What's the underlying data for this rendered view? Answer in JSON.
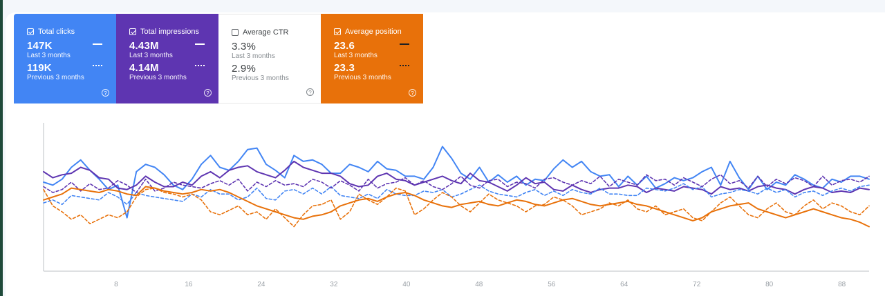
{
  "cards": [
    {
      "id": "clicks",
      "title": "Total clicks",
      "checked": true,
      "current": "147K",
      "current_label": "Last 3 months",
      "previous": "119K",
      "previous_label": "Previous 3 months",
      "color": "#4285f4"
    },
    {
      "id": "impressions",
      "title": "Total impressions",
      "checked": true,
      "current": "4.43M",
      "current_label": "Last 3 months",
      "previous": "4.14M",
      "previous_label": "Previous 3 months",
      "color": "#5e35b1"
    },
    {
      "id": "ctr",
      "title": "Average CTR",
      "checked": false,
      "current": "3.3%",
      "current_label": "Last 3 months",
      "previous": "2.9%",
      "previous_label": "Previous 3 months",
      "color": "#ffffff"
    },
    {
      "id": "position",
      "title": "Average position",
      "checked": true,
      "current": "23.6",
      "current_label": "Last 3 months",
      "previous": "23.3",
      "previous_label": "Previous 3 months",
      "color": "#e8710a"
    }
  ],
  "help_glyph": "?",
  "chart_data": {
    "type": "line",
    "xlim": [
      0,
      91
    ],
    "ylim": [
      0,
      100
    ],
    "x_ticks": [
      "8",
      "16",
      "24",
      "32",
      "40",
      "48",
      "56",
      "64",
      "72",
      "80",
      "88"
    ],
    "axis_color": "#bdc1c6",
    "series": [
      {
        "key": "clicks_last",
        "color": "#4285f4",
        "style": "solid",
        "values": [
          60,
          58,
          62,
          70,
          75,
          68,
          62,
          55,
          58,
          36,
          67,
          72,
          70,
          65,
          58,
          55,
          62,
          72,
          78,
          70,
          68,
          74,
          82,
          83,
          72,
          68,
          63,
          78,
          74,
          75,
          72,
          66,
          66,
          72,
          70,
          67,
          74,
          69,
          68,
          64,
          64,
          62,
          70,
          84,
          76,
          66,
          62,
          70,
          60,
          65,
          60,
          64,
          58,
          62,
          61,
          69,
          75,
          70,
          74,
          67,
          64,
          65,
          57,
          64,
          58,
          64,
          56,
          59,
          63,
          61,
          63,
          67,
          70,
          58,
          74,
          63,
          55,
          64,
          55,
          60,
          58,
          65,
          62,
          58,
          56,
          62,
          60,
          64,
          64,
          62
        ]
      },
      {
        "key": "impressions_last",
        "color": "#5e35b1",
        "style": "solid",
        "values": [
          67,
          63,
          65,
          66,
          70,
          68,
          63,
          62,
          56,
          55,
          58,
          64,
          60,
          57,
          57,
          60,
          58,
          64,
          67,
          63,
          68,
          70,
          71,
          67,
          65,
          63,
          68,
          74,
          70,
          68,
          66,
          66,
          64,
          59,
          57,
          58,
          64,
          66,
          62,
          61,
          58,
          60,
          62,
          64,
          61,
          59,
          66,
          61,
          60,
          57,
          54,
          58,
          63,
          59,
          60,
          55,
          54,
          58,
          55,
          53,
          55,
          56,
          56,
          58,
          57,
          53,
          56,
          55,
          54,
          57,
          56,
          55,
          52,
          57,
          55,
          56,
          54,
          57,
          58,
          56,
          55,
          52,
          55,
          57,
          56,
          53,
          54,
          53,
          56,
          55
        ]
      },
      {
        "key": "clicks_previous",
        "color": "#4285f4",
        "style": "dashed",
        "values": [
          46,
          48,
          45,
          51,
          50,
          49,
          48,
          53,
          50,
          45,
          53,
          51,
          50,
          49,
          48,
          47,
          52,
          50,
          55,
          52,
          52,
          48,
          50,
          56,
          49,
          48,
          54,
          55,
          52,
          56,
          52,
          57,
          51,
          50,
          49,
          52,
          49,
          55,
          52,
          51,
          51,
          54,
          53,
          55,
          50,
          52,
          55,
          58,
          54,
          52,
          51,
          50,
          53,
          55,
          51,
          54,
          51,
          55,
          53,
          52,
          56,
          52,
          52,
          51,
          51,
          56,
          55,
          54,
          56,
          59,
          55,
          57,
          50,
          52,
          53,
          55,
          54,
          52,
          56,
          53,
          55,
          50,
          53,
          54,
          51,
          54,
          56,
          54,
          57,
          58
        ]
      },
      {
        "key": "impressions_previous",
        "color": "#5e35b1",
        "style": "dashed",
        "values": [
          57,
          53,
          55,
          60,
          54,
          59,
          55,
          56,
          61,
          58,
          53,
          62,
          54,
          56,
          60,
          58,
          57,
          56,
          59,
          61,
          58,
          62,
          54,
          60,
          57,
          61,
          58,
          59,
          57,
          62,
          60,
          56,
          61,
          58,
          54,
          62,
          56,
          59,
          60,
          63,
          58,
          61,
          57,
          55,
          59,
          64,
          58,
          56,
          61,
          62,
          57,
          60,
          59,
          56,
          62,
          63,
          60,
          58,
          61,
          59,
          64,
          57,
          62,
          60,
          58,
          65,
          61,
          62,
          58,
          63,
          60,
          57,
          62,
          65,
          59,
          61,
          56,
          64,
          57,
          62,
          59,
          63,
          61,
          57,
          64,
          58,
          61,
          62,
          60,
          64
        ]
      },
      {
        "key": "position_last",
        "color": "#e8710a",
        "style": "solid",
        "values": [
          48,
          50,
          52,
          56,
          55,
          54,
          53,
          55,
          54,
          52,
          51,
          57,
          56,
          54,
          53,
          52,
          53,
          55,
          54,
          55,
          53,
          50,
          47,
          44,
          42,
          40,
          38,
          36,
          35,
          37,
          38,
          40,
          44,
          46,
          48,
          49,
          47,
          50,
          52,
          53,
          51,
          48,
          46,
          44,
          43,
          45,
          46,
          47,
          45,
          44,
          46,
          48,
          47,
          45,
          44,
          46,
          48,
          49,
          47,
          45,
          44,
          45,
          46,
          47,
          45,
          44,
          42,
          40,
          38,
          36,
          34,
          36,
          40,
          42,
          44,
          45,
          46,
          42,
          40,
          38,
          36,
          38,
          40,
          42,
          40,
          38,
          36,
          35,
          33,
          30
        ]
      },
      {
        "key": "position_previous",
        "color": "#e8710a",
        "style": "dashed",
        "values": [
          55,
          44,
          40,
          35,
          38,
          32,
          35,
          38,
          36,
          40,
          50,
          55,
          56,
          53,
          52,
          50,
          52,
          48,
          40,
          38,
          41,
          44,
          38,
          40,
          35,
          42,
          36,
          30,
          38,
          44,
          45,
          48,
          35,
          40,
          52,
          48,
          45,
          50,
          56,
          54,
          38,
          42,
          48,
          53,
          50,
          44,
          40,
          46,
          52,
          48,
          46,
          44,
          40,
          44,
          45,
          50,
          48,
          44,
          38,
          40,
          42,
          46,
          44,
          48,
          42,
          40,
          44,
          38,
          40,
          42,
          36,
          34,
          40,
          46,
          50,
          44,
          38,
          36,
          42,
          46,
          40,
          38,
          44,
          48,
          42,
          46,
          44,
          40,
          38,
          44
        ]
      }
    ]
  }
}
